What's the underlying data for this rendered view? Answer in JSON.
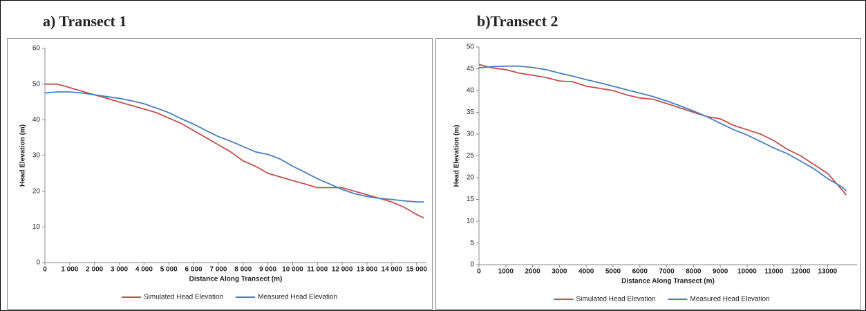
{
  "chart_data": [
    {
      "type": "line",
      "title": "a) Transect 1",
      "xlabel": "Distance Along Transect (m)",
      "ylabel": "Head Elevation (m)",
      "x": [
        0,
        500,
        1000,
        1500,
        2000,
        2500,
        3000,
        3500,
        4000,
        4500,
        5000,
        5500,
        6000,
        6500,
        7000,
        7500,
        8000,
        8500,
        9000,
        9500,
        10000,
        10500,
        11000,
        11500,
        12000,
        12500,
        13000,
        13500,
        14000,
        14500,
        15000,
        15300
      ],
      "series": [
        {
          "name": "Simulated Head Elevation",
          "color": "#c0504d",
          "values": [
            50,
            50,
            49,
            48,
            47,
            46,
            45,
            44,
            43,
            42,
            40.5,
            39,
            37,
            35,
            33,
            31,
            28.5,
            27,
            25,
            24,
            23,
            22,
            21,
            21,
            21,
            20,
            19,
            18,
            17,
            15.5,
            13.5,
            12.5
          ]
        },
        {
          "name": "Measured Head Elevation",
          "color": "#4a7ebb",
          "values": [
            47.5,
            47.8,
            47.8,
            47.5,
            47,
            46.5,
            46,
            45.3,
            44.5,
            43.3,
            42,
            40.3,
            38.8,
            37,
            35.3,
            34,
            32.5,
            31,
            30.3,
            29,
            27,
            25.3,
            23.5,
            22,
            20.5,
            19.3,
            18.5,
            18,
            17.7,
            17.3,
            17,
            17
          ]
        }
      ],
      "xlim": [
        0,
        15400
      ],
      "ylim": [
        0,
        60
      ],
      "xticks": [
        0,
        {
          "value": 1000,
          "label": "1 000"
        },
        {
          "value": 2000,
          "label": "2 000"
        },
        {
          "value": 3000,
          "label": "3 000"
        },
        {
          "value": 4000,
          "label": "4 000"
        },
        {
          "value": 5000,
          "label": "5 000"
        },
        {
          "value": 6000,
          "label": "6 000"
        },
        {
          "value": 7000,
          "label": "7 000"
        },
        {
          "value": 8000,
          "label": "8 000"
        },
        {
          "value": 9000,
          "label": "9 000"
        },
        {
          "value": 10000,
          "label": "10 000"
        },
        {
          "value": 11000,
          "label": "11 000"
        },
        {
          "value": 12000,
          "label": "12 000"
        },
        {
          "value": 13000,
          "label": "13 000"
        },
        {
          "value": 14000,
          "label": "14 000"
        },
        {
          "value": 15000,
          "label": "15 000"
        }
      ],
      "yticks": [
        0,
        10,
        20,
        30,
        40,
        50,
        60
      ],
      "legend": "bottom"
    },
    {
      "type": "line",
      "title": "b)Transect 2",
      "xlabel": "Distance Along Transect (m)",
      "ylabel": "Head Elevation (m)",
      "x": [
        0,
        500,
        1000,
        1500,
        2000,
        2500,
        3000,
        3500,
        4000,
        4500,
        5000,
        5500,
        6000,
        6500,
        7000,
        7500,
        8000,
        8500,
        9000,
        9500,
        10000,
        10500,
        11000,
        11500,
        12000,
        12500,
        13000,
        13500,
        13700
      ],
      "series": [
        {
          "name": "Simulated Head Elevation",
          "color": "#c0504d",
          "values": [
            46,
            45.2,
            44.8,
            44,
            43.5,
            43,
            42.2,
            42,
            41,
            40.5,
            40,
            39,
            38.3,
            38,
            37,
            36,
            35,
            34,
            33.5,
            32,
            31,
            30,
            28.5,
            26.5,
            25,
            23,
            21,
            17.5,
            16
          ]
        },
        {
          "name": "Measured Head Elevation",
          "color": "#4a7ebb",
          "values": [
            45.2,
            45.5,
            45.6,
            45.6,
            45.3,
            44.8,
            44,
            43.3,
            42.5,
            41.8,
            41,
            40.2,
            39.4,
            38.6,
            37.6,
            36.5,
            35.3,
            34,
            32.5,
            31,
            29.8,
            28.3,
            26.8,
            25.5,
            23.8,
            22,
            19.8,
            18,
            17
          ]
        }
      ],
      "xlim": [
        0,
        14100
      ],
      "ylim": [
        0,
        50
      ],
      "xticks": [
        0,
        1000,
        2000,
        3000,
        4000,
        5000,
        6000,
        7000,
        8000,
        9000,
        10000,
        11000,
        12000,
        13000
      ],
      "yticks": [
        0,
        5,
        10,
        15,
        20,
        25,
        30,
        35,
        40,
        45,
        50
      ],
      "legend": "bottom"
    }
  ]
}
